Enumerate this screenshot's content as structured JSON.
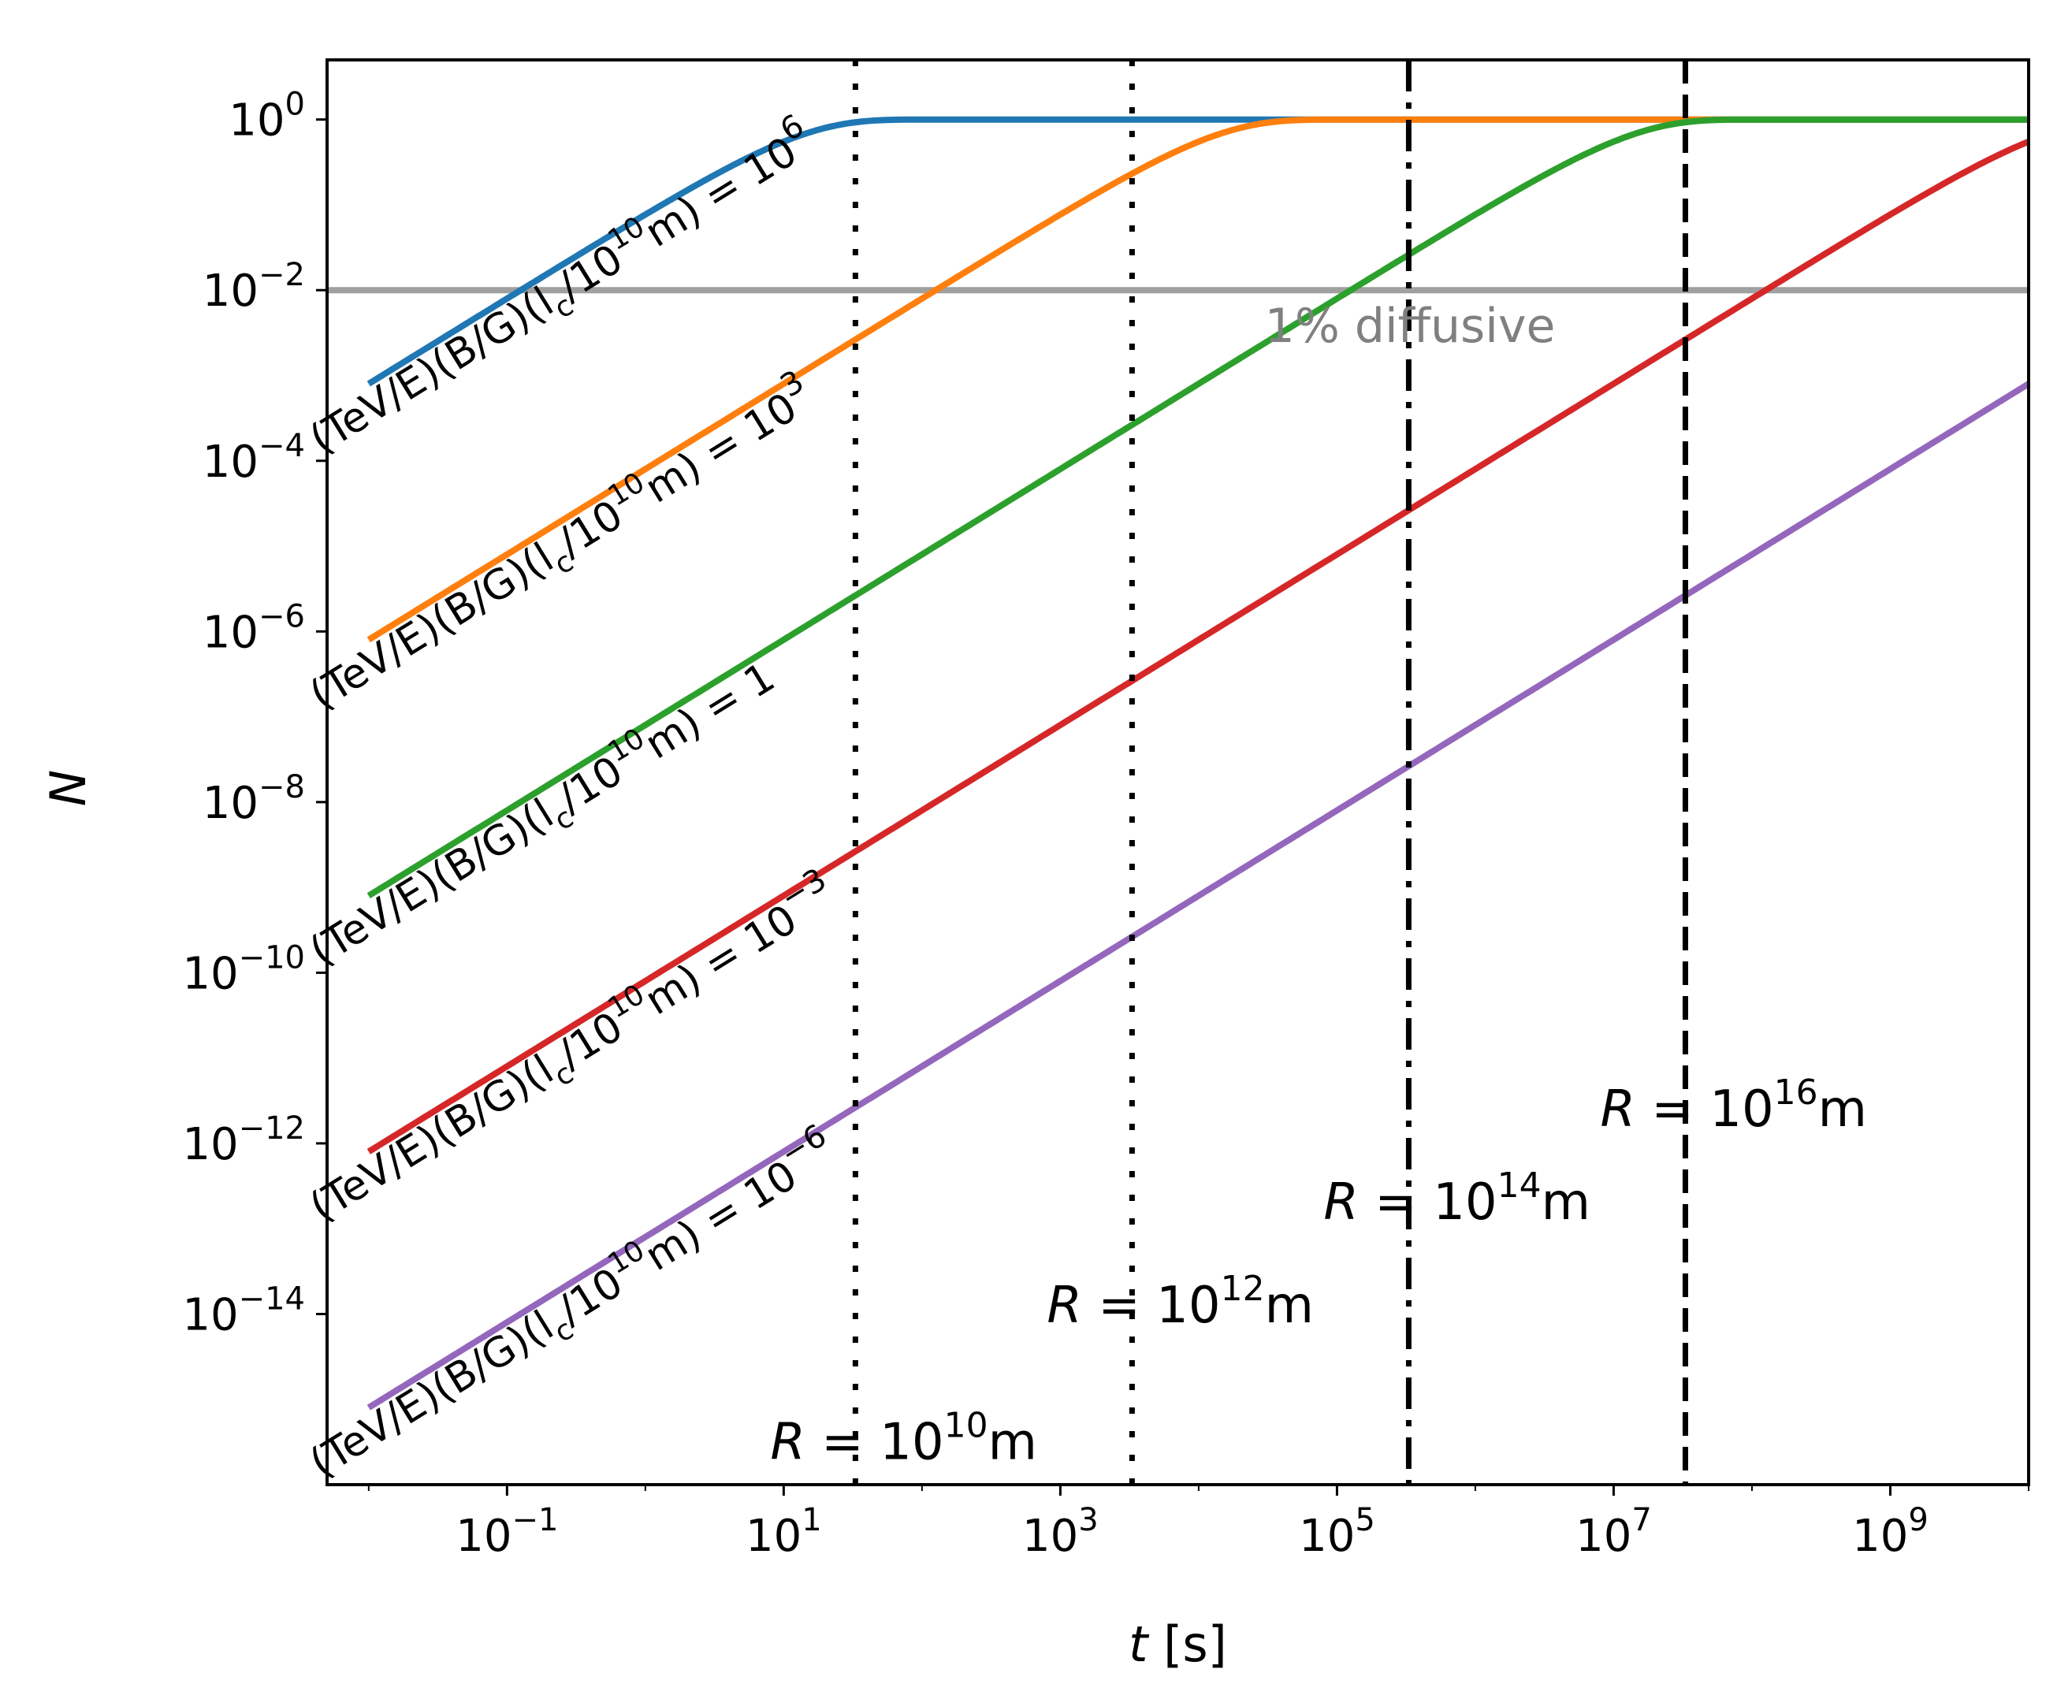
{
  "chart_data": {
    "type": "line",
    "title": "",
    "xlabel_var": "t",
    "xlabel_unit": "[s]",
    "ylabel": "N",
    "xscale": "log",
    "yscale": "log",
    "xlim": [
      0.005,
      10000000000
    ],
    "ylim": [
      1e-16,
      5
    ],
    "grid": false,
    "x_ticks": [
      {
        "base": "10",
        "exp": "−1",
        "value": 0.1
      },
      {
        "base": "10",
        "exp": "1",
        "value": 10
      },
      {
        "base": "10",
        "exp": "3",
        "value": 1000
      },
      {
        "base": "10",
        "exp": "5",
        "value": 100000
      },
      {
        "base": "10",
        "exp": "7",
        "value": 10000000
      },
      {
        "base": "10",
        "exp": "9",
        "value": 1000000000
      }
    ],
    "y_ticks": [
      {
        "base": "10",
        "exp": "0",
        "value": 1
      },
      {
        "base": "10",
        "exp": "−2",
        "value": 0.01
      },
      {
        "base": "10",
        "exp": "−4",
        "value": 0.0001
      },
      {
        "base": "10",
        "exp": "−6",
        "value": 1e-06
      },
      {
        "base": "10",
        "exp": "−8",
        "value": 1e-08
      },
      {
        "base": "10",
        "exp": "−10",
        "value": 1e-10
      },
      {
        "base": "10",
        "exp": "−12",
        "value": 1e-12
      },
      {
        "base": "10",
        "exp": "−14",
        "value": 1e-14
      }
    ],
    "series": [
      {
        "name": "(TeV/E)(B/G)(lc/10^10m) = 10^6",
        "color": "#1f77b4",
        "saturation_time": 33,
        "t_start": 0.01,
        "t_end": 10000000000,
        "value_at_start": 0.0008,
        "label": {
          "pre": "(TeV/E)(B/G)(l",
          "sub": "c",
          "mid": "/10",
          "sup": "10",
          "post": "m) = 10",
          "exp": "6"
        }
      },
      {
        "name": "(TeV/E)(B/G)(lc/10^10m) = 10^3",
        "color": "#ff7f0e",
        "saturation_time": 33000,
        "t_start": 0.01,
        "t_end": 10000000000,
        "value_at_start": 8e-07,
        "label": {
          "pre": "(TeV/E)(B/G)(l",
          "sub": "c",
          "mid": "/10",
          "sup": "10",
          "post": "m) = 10",
          "exp": "3"
        }
      },
      {
        "name": "(TeV/E)(B/G)(lc/10^10m) = 1",
        "color": "#2ca02c",
        "saturation_time": 33000000,
        "t_start": 0.01,
        "t_end": 10000000000,
        "value_at_start": 8e-10,
        "label": {
          "pre": "(TeV/E)(B/G)(l",
          "sub": "c",
          "mid": "/10",
          "sup": "10",
          "post": "m) = 1",
          "exp": ""
        }
      },
      {
        "name": "(TeV/E)(B/G)(lc/10^10m) = 10^-3",
        "color": "#d62728",
        "saturation_time": 33000000000,
        "t_start": 0.01,
        "t_end": 10000000000,
        "value_at_start": 8e-13,
        "label": {
          "pre": "(TeV/E)(B/G)(l",
          "sub": "c",
          "mid": "/10",
          "sup": "10",
          "post": "m) = 10",
          "exp": "−3"
        }
      },
      {
        "name": "(TeV/E)(B/G)(lc/10^10m) = 10^-6",
        "color": "#9467bd",
        "saturation_time": 33000000000000,
        "t_start": 0.01,
        "t_end": 10000000000,
        "value_at_start": 8e-16,
        "label": {
          "pre": "(TeV/E)(B/G)(l",
          "sub": "c",
          "mid": "/10",
          "sup": "10",
          "post": "m) = 10",
          "exp": "−6"
        }
      }
    ],
    "hline": {
      "value": 0.01,
      "label": "1% diffusive",
      "color": "#a0a0a0"
    },
    "vlines": [
      {
        "t": 33,
        "style": "dotted",
        "label_pre": "R = 10",
        "label_exp": "10",
        "label_post": "m",
        "label_t": 8,
        "label_N": 2e-16
      },
      {
        "t": 3300,
        "style": "dotted",
        "label_pre": "R = 10",
        "label_exp": "12",
        "label_post": "m",
        "label_t": 800,
        "label_N": 8e-15
      },
      {
        "t": 330000,
        "style": "dashdot",
        "label_pre": "R = 10",
        "label_exp": "14",
        "label_post": "m",
        "label_t": 80000,
        "label_N": 1.3e-13
      },
      {
        "t": 33000000,
        "style": "dashed",
        "label_pre": "R = 10",
        "label_exp": "16",
        "label_post": "m",
        "label_t": 8000000,
        "label_N": 1.6e-12
      }
    ]
  }
}
